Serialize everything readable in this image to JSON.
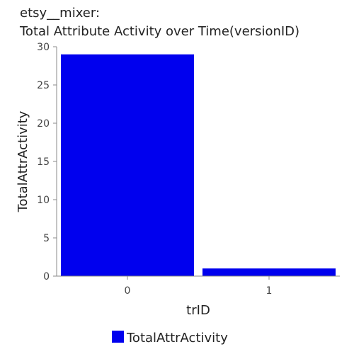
{
  "chart_data": {
    "type": "bar",
    "title": "etsy__mixer:",
    "subtitle": "Total Attribute Activity over Time(versionID)",
    "xlabel": "trID",
    "ylabel": "TotalAttrActivity",
    "categories": [
      "0",
      "1"
    ],
    "series": [
      {
        "name": "TotalAttrActivity",
        "values": [
          29,
          1
        ],
        "color": "#0000ee"
      }
    ],
    "ylim": [
      0,
      30
    ],
    "yticks": [
      0,
      5,
      10,
      15,
      20,
      25,
      30
    ],
    "grid": false,
    "legend": "bottom"
  }
}
